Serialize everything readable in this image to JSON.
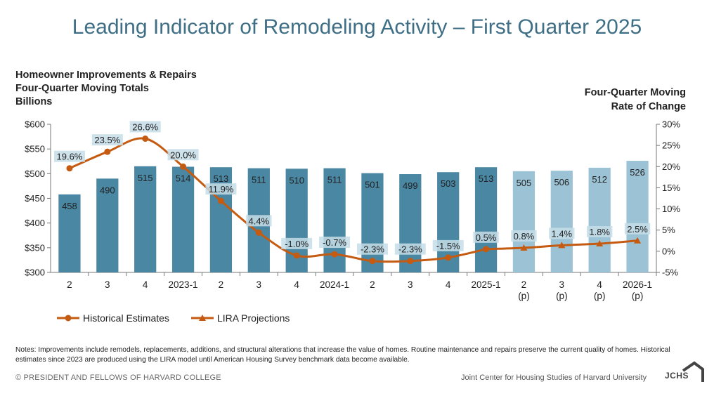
{
  "title": "Leading Indicator of Remodeling Activity – First Quarter 2025",
  "left_axis_label": [
    "Homeowner Improvements & Repairs",
    "Four-Quarter Moving Totals",
    "Billions"
  ],
  "right_axis_label": [
    "Four-Quarter Moving",
    "Rate of Change"
  ],
  "legend": {
    "historical": "Historical Estimates",
    "projections": "LIRA Projections"
  },
  "notes": "Notes: Improvements include remodels, replacements, additions, and structural alterations that increase the value of homes. Routine maintenance and repairs preserve the current quality of homes. Historical estimates since 2023 are produced using the LIRA model until American Housing Survey benchmark data become available.",
  "footer_left": "© PRESIDENT AND FELLOWS OF HARVARD COLLEGE",
  "footer_right": "Joint Center for Housing Studies of Harvard University",
  "logo_text": "JCHS",
  "colors": {
    "bar_historical": "#4a87a3",
    "bar_projection": "#9cc3d5",
    "bar_label_band": "#c6dde8",
    "line": "#c55a11"
  },
  "chart_data": {
    "type": "bar",
    "categories": [
      "2",
      "3",
      "4",
      "2023-1",
      "2",
      "3",
      "4",
      "2024-1",
      "2",
      "3",
      "4",
      "2025-1",
      "2\n(p)",
      "3\n(p)",
      "4\n(p)",
      "2026-1\n(p)"
    ],
    "series": [
      {
        "name": "",
        "type": "bar",
        "axis": "left",
        "values": [
          458,
          490,
          515,
          514,
          513,
          511,
          510,
          511,
          501,
          499,
          503,
          513,
          505,
          506,
          512,
          526
        ],
        "projection_from_index": 12
      },
      {
        "name": "Historical Estimates",
        "type": "line",
        "axis": "right",
        "values": [
          19.6,
          23.5,
          26.6,
          20.0,
          11.9,
          4.4,
          -1.0,
          -0.7,
          -2.3,
          -2.3,
          -1.5,
          0.5,
          null,
          null,
          null,
          null
        ],
        "labels": [
          "19.6%",
          "23.5%",
          "26.6%",
          "20.0%",
          "11.9%",
          "4.4%",
          "-1.0%",
          "-0.7%",
          "-2.3%",
          "-2.3%",
          "-1.5%",
          "0.5%",
          "",
          "",
          "",
          ""
        ]
      },
      {
        "name": "LIRA Projections",
        "type": "line",
        "axis": "right",
        "values": [
          null,
          null,
          null,
          null,
          null,
          null,
          null,
          null,
          null,
          null,
          null,
          0.5,
          0.8,
          1.4,
          1.8,
          2.5
        ],
        "labels": [
          "",
          "",
          "",
          "",
          "",
          "",
          "",
          "",
          "",
          "",
          "",
          "",
          "0.8%",
          "1.4%",
          "1.8%",
          "2.5%"
        ]
      }
    ],
    "left_axis": {
      "ylim": [
        300,
        600
      ],
      "ticks": [
        300,
        350,
        400,
        450,
        500,
        550,
        600
      ],
      "tick_labels": [
        "$300",
        "$350",
        "$400",
        "$450",
        "$500",
        "$550",
        "$600"
      ]
    },
    "right_axis": {
      "ylim": [
        -5,
        30
      ],
      "ticks": [
        -5,
        0,
        5,
        10,
        15,
        20,
        25,
        30
      ],
      "tick_labels": [
        "-5%",
        "0%",
        "5%",
        "10%",
        "15%",
        "20%",
        "25%",
        "30%"
      ]
    },
    "grid": false,
    "legend_position": "bottom-left"
  }
}
